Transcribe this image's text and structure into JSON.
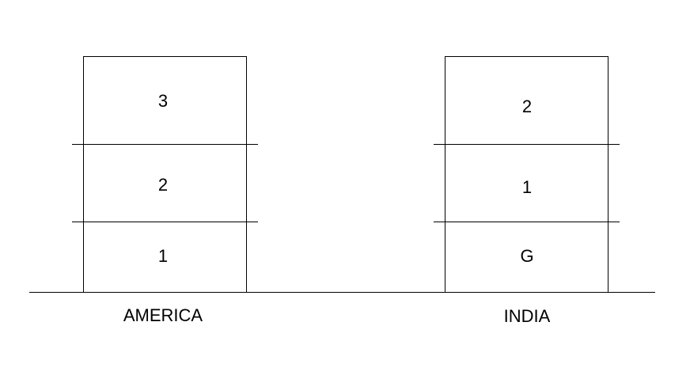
{
  "buildings": [
    {
      "caption": "AMERICA",
      "floors": [
        "3",
        "2",
        "1"
      ]
    },
    {
      "caption": "INDIA",
      "floors": [
        "2",
        "1",
        "G"
      ]
    }
  ],
  "colors": {
    "line": "#000000",
    "background": "#ffffff",
    "text": "#000000"
  }
}
